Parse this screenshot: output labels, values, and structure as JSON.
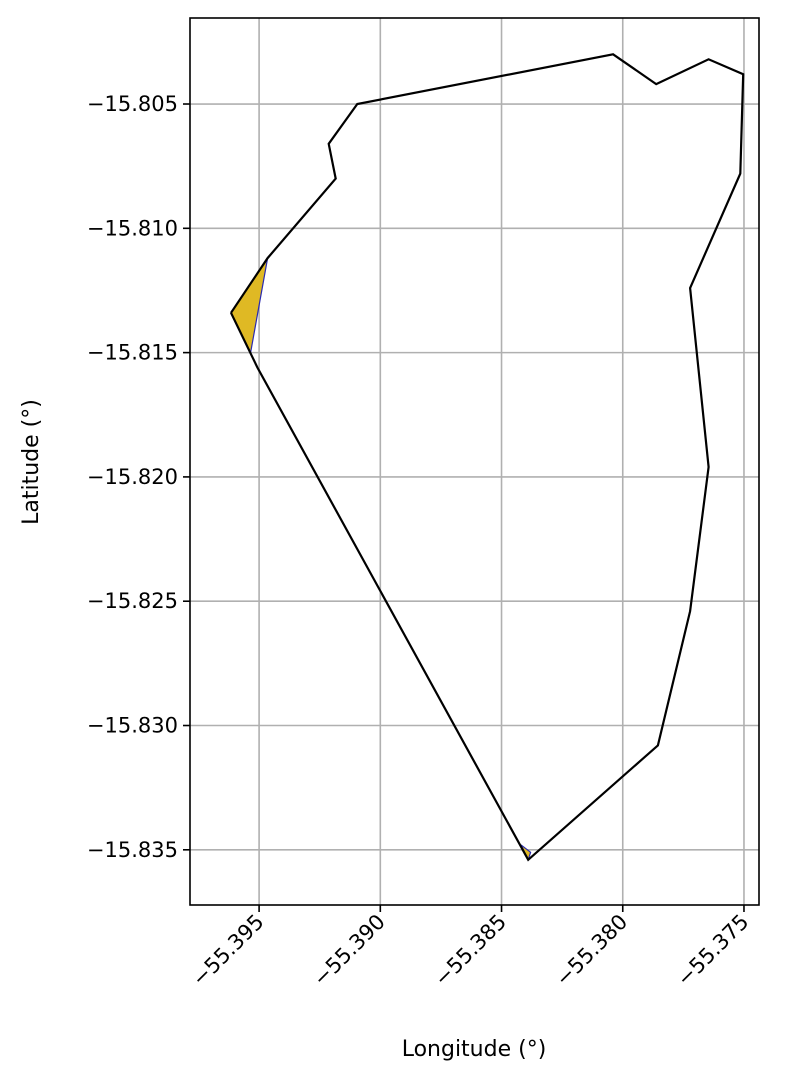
{
  "chart_data": {
    "type": "map",
    "xlabel": "Longitude (°)",
    "ylabel": "Latitude (°)",
    "xlim": [
      -55.39785,
      -55.37438
    ],
    "ylim": [
      -15.83722,
      -15.80154
    ],
    "xticks": [
      {
        "value": -55.395,
        "label": "−55.395"
      },
      {
        "value": -55.39,
        "label": "−55.390"
      },
      {
        "value": -55.385,
        "label": "−55.385"
      },
      {
        "value": -55.38,
        "label": "−55.380"
      },
      {
        "value": -55.375,
        "label": "−55.375"
      }
    ],
    "yticks": [
      {
        "value": -15.805,
        "label": "−15.805"
      },
      {
        "value": -15.81,
        "label": "−15.810"
      },
      {
        "value": -15.815,
        "label": "−15.815"
      },
      {
        "value": -15.82,
        "label": "−15.820"
      },
      {
        "value": -15.825,
        "label": "−15.825"
      },
      {
        "value": -15.83,
        "label": "−15.830"
      },
      {
        "value": -15.835,
        "label": "−15.835"
      }
    ],
    "grid": true,
    "boundary": {
      "name": "boundary",
      "color": "#000000",
      "points": [
        [
          -55.39616,
          -15.8134
        ],
        [
          -55.39465,
          -15.8112
        ],
        [
          -55.39184,
          -15.808
        ],
        [
          -55.39213,
          -15.8066
        ],
        [
          -55.39095,
          -15.805
        ],
        [
          -55.3804,
          -15.803
        ],
        [
          -55.37862,
          -15.8042
        ],
        [
          -55.37646,
          -15.8032
        ],
        [
          -55.37503,
          -15.8038
        ],
        [
          -55.37515,
          -15.8078
        ],
        [
          -55.37722,
          -15.8124
        ],
        [
          -55.37646,
          -15.8196
        ],
        [
          -55.37722,
          -15.8254
        ],
        [
          -55.37855,
          -15.8308
        ],
        [
          -55.3839,
          -15.8354
        ],
        [
          -55.39507,
          -15.8156
        ],
        [
          -55.39616,
          -15.8134
        ]
      ]
    },
    "highlight_areas": [
      {
        "name": "area-1",
        "fill": "#dfb924",
        "edge": "#2b2bb0",
        "points": [
          [
            -55.39616,
            -15.8134
          ],
          [
            -55.39465,
            -15.8112
          ],
          [
            -55.39535,
            -15.815
          ]
        ]
      },
      {
        "name": "area-2",
        "fill": "#dfb924",
        "edge": "#2b2bb0",
        "points": [
          [
            -55.3842,
            -15.8348
          ],
          [
            -55.3838,
            -15.8351
          ],
          [
            -55.3839,
            -15.8354
          ]
        ]
      }
    ]
  }
}
